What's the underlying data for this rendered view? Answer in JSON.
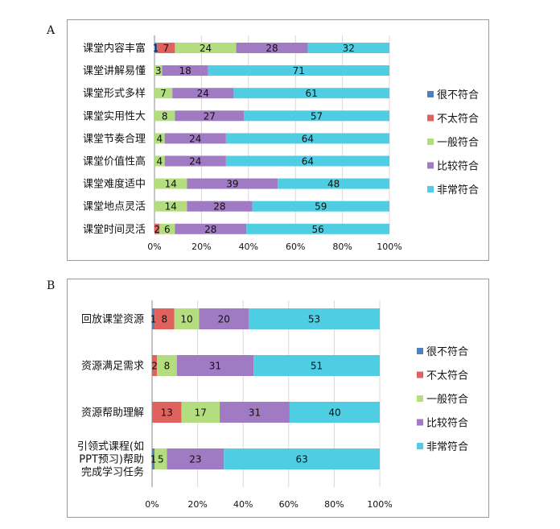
{
  "figure": {
    "panels": [
      {
        "letter": "A"
      },
      {
        "letter": "B"
      }
    ]
  },
  "chart_data": [
    {
      "type": "bar",
      "orientation": "horizontal",
      "stacked": "percent",
      "panel": "A",
      "categories": [
        "课堂内容丰富",
        "课堂讲解易懂",
        "课堂形式多样",
        "课堂实用性大",
        "课堂节奏合理",
        "课堂价值性高",
        "课堂难度适中",
        "课堂地点灵活",
        "课堂时间灵活"
      ],
      "series": [
        {
          "name": "很不符合",
          "color": "#4f81bd",
          "values": [
            1,
            0,
            0,
            0,
            0,
            0,
            0,
            0,
            0
          ]
        },
        {
          "name": "不太符合",
          "color": "#e0625e",
          "values": [
            7,
            0,
            0,
            0,
            0,
            0,
            0,
            0,
            2
          ]
        },
        {
          "name": "一般符合",
          "color": "#b3dd7f",
          "values": [
            24,
            3,
            7,
            8,
            4,
            4,
            14,
            14,
            6
          ]
        },
        {
          "name": "比较符合",
          "color": "#a07ac2",
          "values": [
            28,
            18,
            24,
            27,
            24,
            24,
            39,
            28,
            28
          ]
        },
        {
          "name": "非常符合",
          "color": "#4fcde2",
          "values": [
            32,
            71,
            61,
            57,
            64,
            64,
            48,
            59,
            56
          ]
        }
      ],
      "xlim": [
        0,
        100
      ],
      "xticks": [
        "0%",
        "20%",
        "40%",
        "60%",
        "80%",
        "100%"
      ],
      "legend": "right"
    },
    {
      "type": "bar",
      "orientation": "horizontal",
      "stacked": "percent",
      "panel": "B",
      "categories": [
        "回放课堂资源",
        "资源满足需求",
        "资源帮助理解",
        "引领式课程(如PPT预习)帮助完成学习任务"
      ],
      "category_lines": [
        [
          "回放课堂资源"
        ],
        [
          "资源满足需求"
        ],
        [
          "资源帮助理解"
        ],
        [
          "引领式课程(如",
          "PPT预习)帮助",
          "完成学习任务"
        ]
      ],
      "series": [
        {
          "name": "很不符合",
          "color": "#4f81bd",
          "values": [
            1,
            0,
            0,
            1
          ]
        },
        {
          "name": "不太符合",
          "color": "#e0625e",
          "values": [
            8,
            2,
            13,
            0
          ]
        },
        {
          "name": "一般符合",
          "color": "#b3dd7f",
          "values": [
            10,
            8,
            17,
            5
          ]
        },
        {
          "name": "比较符合",
          "color": "#a07ac2",
          "values": [
            20,
            31,
            31,
            23
          ]
        },
        {
          "name": "非常符合",
          "color": "#4fcde2",
          "values": [
            53,
            51,
            40,
            63
          ]
        }
      ],
      "value_labels": [
        [
          "1",
          "8",
          "10",
          "20",
          "53"
        ],
        [
          "2",
          "8",
          "31",
          "51"
        ],
        [
          "13",
          "17",
          "31",
          "40"
        ],
        [
          "1",
          "5",
          "23",
          "63"
        ]
      ],
      "xlim": [
        0,
        100
      ],
      "xticks": [
        "0%",
        "20%",
        "40%",
        "60%",
        "80%",
        "100%"
      ],
      "legend": "right"
    }
  ]
}
